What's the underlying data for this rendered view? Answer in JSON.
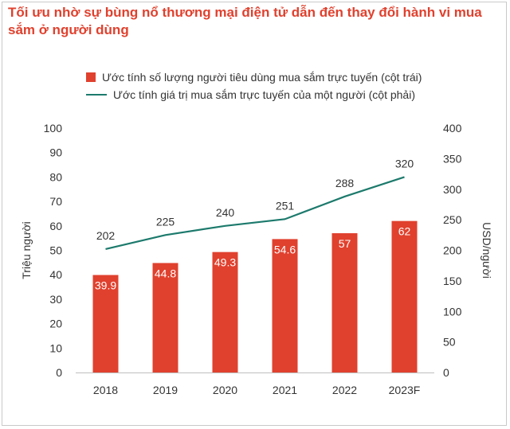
{
  "title": "Tối ưu nhờ sự bùng nổ thương mại điện tử dẫn đến thay đổi hành vi mua sắm ở người dùng",
  "colors": {
    "bar": "#e0412e",
    "line": "#1c7a6c",
    "title": "#e0412e"
  },
  "chart_data": {
    "type": "bar+line",
    "categories": [
      "2018",
      "2019",
      "2020",
      "2021",
      "2022",
      "2023F"
    ],
    "series": [
      {
        "name": "Ước tính số lượng người tiêu dùng mua sắm trực tuyến (cột trái)",
        "type": "bar",
        "axis": "left",
        "values": [
          39.9,
          44.8,
          49.3,
          54.6,
          57,
          62
        ],
        "labels": [
          "39.9",
          "44.8",
          "49.3",
          "54.6",
          "57",
          "62"
        ]
      },
      {
        "name": "Ước tính giá trị mua sắm trực tuyến của một người (cột phải)",
        "type": "line",
        "axis": "right",
        "values": [
          202,
          225,
          240,
          251,
          288,
          320
        ],
        "labels": [
          "202",
          "225",
          "240",
          "251",
          "288",
          "320"
        ]
      }
    ],
    "left_axis": {
      "label": "Triệu người",
      "range": [
        0,
        100
      ],
      "ticks": [
        "0",
        "10",
        "20",
        "30",
        "40",
        "50",
        "60",
        "70",
        "80",
        "90",
        "100"
      ]
    },
    "right_axis": {
      "label": "USD/người",
      "range": [
        0,
        400
      ],
      "ticks": [
        "0",
        "50",
        "100",
        "150",
        "200",
        "250",
        "300",
        "350",
        "400"
      ]
    },
    "grid": false,
    "legend_position": "top"
  }
}
